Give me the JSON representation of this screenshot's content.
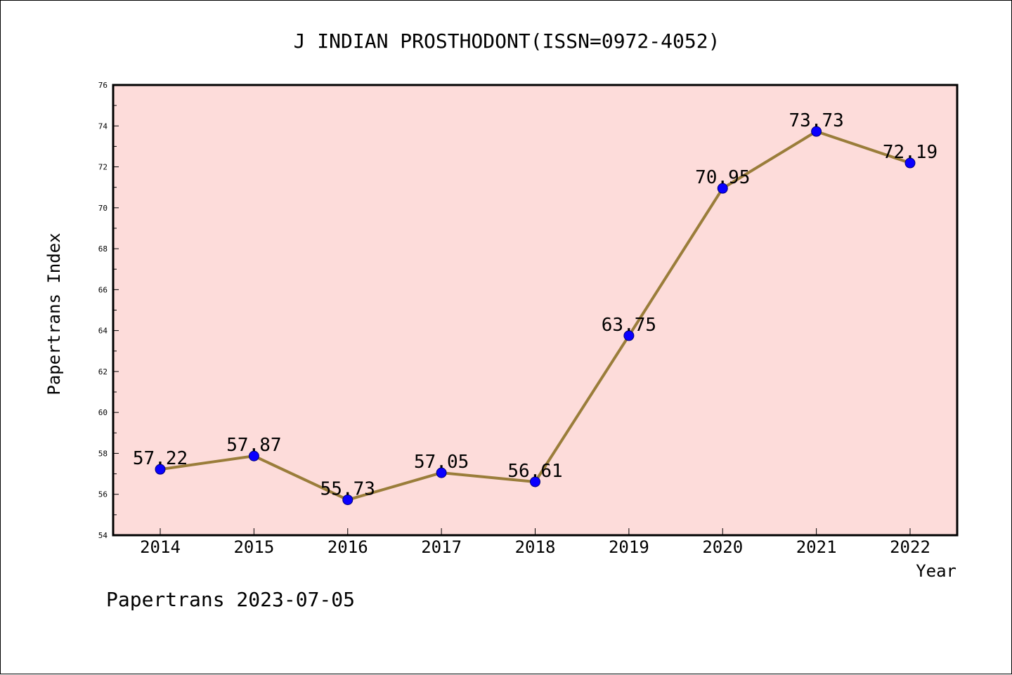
{
  "chart_data": {
    "type": "line",
    "title": "J INDIAN PROSTHODONT(ISSN=0972-4052)",
    "xlabel": "Year",
    "ylabel": "Papertrans Index",
    "categories": [
      "2014",
      "2015",
      "2016",
      "2017",
      "2018",
      "2019",
      "2020",
      "2021",
      "2022"
    ],
    "series": [
      {
        "values": [
          57.22,
          57.87,
          55.73,
          57.05,
          56.61,
          63.75,
          70.95,
          73.73,
          72.19
        ],
        "labels": [
          "57.22",
          "57.87",
          "55.73",
          "57.05",
          "56.61",
          "63.75",
          "70.95",
          "73.73",
          "72.19"
        ]
      }
    ],
    "ylim": [
      54,
      76
    ],
    "yticks": [
      "54",
      "56",
      "58",
      "60",
      "62",
      "64",
      "66",
      "68",
      "70",
      "72",
      "74",
      "76"
    ],
    "grid": false,
    "colors": {
      "plot_bg": "#fddcda",
      "line": "#9a7d3a",
      "marker": "#0a00ff",
      "marker_edge": "#00007a"
    }
  },
  "footer": {
    "text": "Papertrans 2023-07-05"
  }
}
